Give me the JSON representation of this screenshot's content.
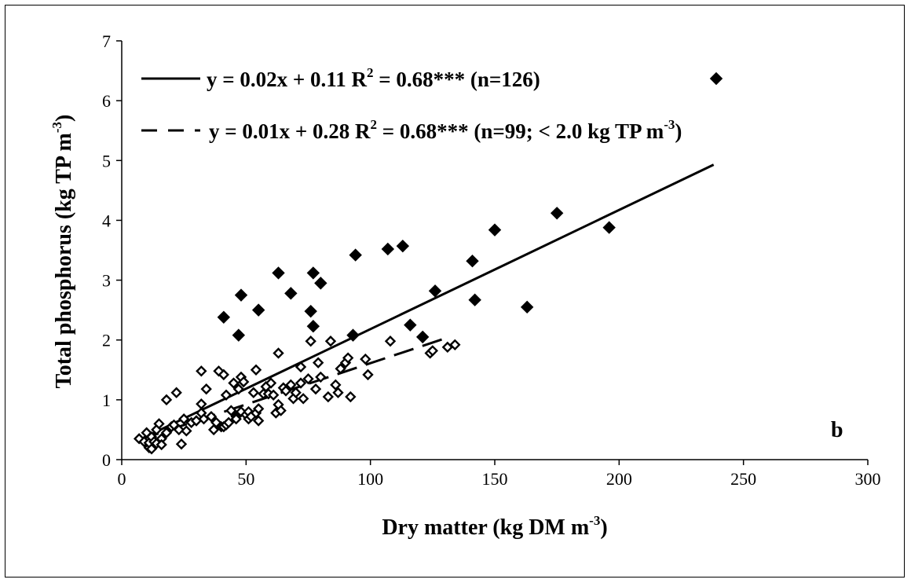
{
  "chart_data": {
    "type": "scatter",
    "panel_label": "b",
    "xlabel": {
      "main": "Dry matter (kg DM m",
      "sup": "-3",
      "end": ")"
    },
    "ylabel": {
      "main": "Total phosphorus  (kg TP  m",
      "sup": "-3",
      "end": ")"
    },
    "xlim": [
      0,
      300
    ],
    "ylim": [
      0,
      7
    ],
    "xticks": [
      0,
      50,
      100,
      150,
      200,
      250,
      300
    ],
    "yticks": [
      0,
      1,
      2,
      3,
      4,
      5,
      6,
      7
    ],
    "grid": false,
    "legend": [
      {
        "style": "solid",
        "text1": "y = 0.02x + 0.11 R",
        "sup": "2",
        "text2": " = 0.68*** (n=126)",
        "marker": "filled-diamond"
      },
      {
        "style": "dashed",
        "text1": "y = 0.01x + 0.28 R",
        "sup": "2",
        "text2": " = 0.68*** (n=99; < 2.0 kg TP m",
        "sup2": "-3",
        "text3": ")"
      }
    ],
    "lines": [
      {
        "name": "all",
        "style": "solid",
        "slope": 0.02,
        "intercept": 0.11,
        "x_range": [
          7,
          238
        ],
        "y_range": [
          0.33,
          4.93
        ]
      },
      {
        "name": "subset",
        "style": "dashed",
        "slope": 0.0125,
        "intercept": 0.28,
        "x_range": [
          7,
          131
        ],
        "y_range": [
          0.33,
          2.04
        ]
      }
    ],
    "series": [
      {
        "name": "high",
        "marker": "filled-diamond",
        "points": [
          [
            41,
            2.38
          ],
          [
            47,
            2.08
          ],
          [
            48,
            2.75
          ],
          [
            55,
            2.5
          ],
          [
            63,
            3.12
          ],
          [
            68,
            2.78
          ],
          [
            76,
            2.48
          ],
          [
            77,
            2.23
          ],
          [
            77,
            3.12
          ],
          [
            80,
            2.95
          ],
          [
            93,
            2.08
          ],
          [
            94,
            3.42
          ],
          [
            107,
            3.52
          ],
          [
            113,
            3.57
          ],
          [
            116,
            2.25
          ],
          [
            121,
            2.05
          ],
          [
            126,
            2.82
          ],
          [
            141,
            3.32
          ],
          [
            142,
            2.67
          ],
          [
            150,
            3.84
          ],
          [
            163,
            2.55
          ],
          [
            175,
            4.12
          ],
          [
            196,
            3.88
          ]
        ]
      },
      {
        "name": "low",
        "marker": "open-diamond",
        "points": [
          [
            7,
            0.35
          ],
          [
            9,
            0.3
          ],
          [
            10,
            0.45
          ],
          [
            11,
            0.2
          ],
          [
            11,
            0.28
          ],
          [
            12,
            0.18
          ],
          [
            12,
            0.38
          ],
          [
            13,
            0.3
          ],
          [
            14,
            0.5
          ],
          [
            14,
            0.27
          ],
          [
            15,
            0.6
          ],
          [
            16,
            0.35
          ],
          [
            16,
            0.25
          ],
          [
            18,
            0.45
          ],
          [
            18,
            1.0
          ],
          [
            20,
            0.55
          ],
          [
            21,
            0.58
          ],
          [
            22,
            1.12
          ],
          [
            23,
            0.5
          ],
          [
            24,
            0.26
          ],
          [
            25,
            0.68
          ],
          [
            26,
            0.48
          ],
          [
            28,
            0.62
          ],
          [
            30,
            0.65
          ],
          [
            32,
            0.93
          ],
          [
            32,
            0.78
          ],
          [
            32,
            1.48
          ],
          [
            33,
            0.68
          ],
          [
            34,
            1.18
          ],
          [
            36,
            0.72
          ],
          [
            37,
            0.5
          ],
          [
            38,
            0.62
          ],
          [
            39,
            1.48
          ],
          [
            40,
            0.55
          ],
          [
            41,
            0.55
          ],
          [
            41,
            1.42
          ],
          [
            42,
            0.58
          ],
          [
            42,
            1.08
          ],
          [
            43,
            0.62
          ],
          [
            44,
            0.82
          ],
          [
            45,
            1.28
          ],
          [
            46,
            0.72
          ],
          [
            46,
            0.68
          ],
          [
            47,
            1.18
          ],
          [
            48,
            0.8
          ],
          [
            48,
            1.38
          ],
          [
            49,
            1.3
          ],
          [
            50,
            0.75
          ],
          [
            51,
            0.8
          ],
          [
            51,
            0.68
          ],
          [
            52,
            0.72
          ],
          [
            53,
            1.12
          ],
          [
            54,
            0.78
          ],
          [
            54,
            1.5
          ],
          [
            55,
            0.85
          ],
          [
            55,
            0.65
          ],
          [
            57,
            1.1
          ],
          [
            58,
            1.22
          ],
          [
            59,
            1.1
          ],
          [
            60,
            1.28
          ],
          [
            61,
            1.08
          ],
          [
            62,
            0.78
          ],
          [
            63,
            0.92
          ],
          [
            63,
            1.78
          ],
          [
            64,
            0.82
          ],
          [
            65,
            1.2
          ],
          [
            66,
            1.15
          ],
          [
            68,
            1.25
          ],
          [
            69,
            1.02
          ],
          [
            70,
            1.12
          ],
          [
            72,
            1.55
          ],
          [
            72,
            1.28
          ],
          [
            73,
            1.02
          ],
          [
            75,
            1.35
          ],
          [
            76,
            1.98
          ],
          [
            78,
            1.18
          ],
          [
            79,
            1.62
          ],
          [
            80,
            1.38
          ],
          [
            83,
            1.05
          ],
          [
            84,
            1.98
          ],
          [
            86,
            1.25
          ],
          [
            87,
            1.12
          ],
          [
            88,
            1.52
          ],
          [
            90,
            1.62
          ],
          [
            91,
            1.7
          ],
          [
            92,
            1.05
          ],
          [
            98,
            1.68
          ],
          [
            99,
            1.42
          ],
          [
            108,
            1.98
          ],
          [
            124,
            1.78
          ],
          [
            125,
            1.82
          ],
          [
            131,
            1.88
          ],
          [
            134,
            1.92
          ]
        ]
      }
    ]
  }
}
